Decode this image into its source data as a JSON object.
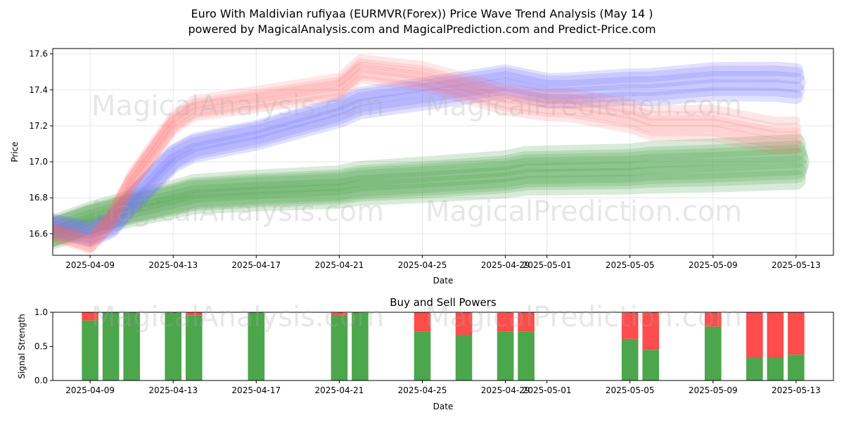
{
  "title_line1": "Euro With Maldivian rufiyaa (EURMVR(Forex)) Price Wave Trend Analysis (May 14 )",
  "title_line2": "powered by MagicalAnalysis.com and MagicalPrediction.com and Predict-Price.com",
  "watermarks": {
    "analysis": "MagicalAnalysis.com",
    "prediction": "MagicalPrediction.com"
  },
  "colors": {
    "red": "#ff6b6b",
    "blue": "#7777ff",
    "green": "#4ca64c",
    "buy": "#4ca64c",
    "sell": "#ff4c4c"
  },
  "chart_data": [
    {
      "type": "line",
      "title": "",
      "xlabel": "Date",
      "ylabel": "Price",
      "ylim": [
        16.48,
        17.63
      ],
      "xlim_days": [
        -1.8,
        35.8
      ],
      "x_origin": "2025-04-09",
      "grid": true,
      "yticks": [
        16.6,
        16.8,
        17.0,
        17.2,
        17.4,
        17.6
      ],
      "ytick_labels": [
        "16.6",
        "16.8",
        "17.0",
        "17.2",
        "17.4",
        "17.6"
      ],
      "xticks_days": [
        0,
        4,
        8,
        12,
        16,
        20,
        22,
        26,
        30,
        34
      ],
      "xtick_labels": [
        "2025-04-09",
        "2025-04-13",
        "2025-04-17",
        "2025-04-21",
        "2025-04-25",
        "2025-04-29",
        "2025-05-01",
        "2025-05-05",
        "2025-05-09",
        "2025-05-13"
      ],
      "series": [
        {
          "name": "red-wave",
          "color": "#ff6b6b",
          "x_days": [
            -2,
            0,
            1,
            2,
            4,
            5,
            8,
            12,
            13,
            16,
            20,
            22,
            23,
            26,
            27,
            30,
            33,
            34
          ],
          "y": [
            16.62,
            16.55,
            16.68,
            16.9,
            17.22,
            17.3,
            17.35,
            17.42,
            17.52,
            17.48,
            17.35,
            17.32,
            17.32,
            17.26,
            17.22,
            17.22,
            17.15,
            17.15
          ]
        },
        {
          "name": "blue-wave",
          "color": "#7777ff",
          "x_days": [
            -2,
            0,
            1,
            2,
            4,
            5,
            8,
            12,
            13,
            16,
            20,
            22,
            23,
            26,
            27,
            30,
            33,
            34
          ],
          "y": [
            16.65,
            16.6,
            16.65,
            16.78,
            17.02,
            17.08,
            17.15,
            17.28,
            17.33,
            17.38,
            17.45,
            17.4,
            17.4,
            17.42,
            17.42,
            17.45,
            17.45,
            17.44
          ]
        },
        {
          "name": "green-wave",
          "color": "#4ca64c",
          "x_days": [
            -2,
            0,
            2,
            4,
            5,
            8,
            12,
            13,
            16,
            20,
            21,
            26,
            27,
            30,
            34
          ],
          "y": [
            16.6,
            16.68,
            16.74,
            16.79,
            16.82,
            16.84,
            16.86,
            16.88,
            16.9,
            16.93,
            16.95,
            16.96,
            16.97,
            16.98,
            17.0
          ]
        }
      ]
    },
    {
      "type": "bar",
      "title": "Buy and Sell Powers",
      "xlabel": "Date",
      "ylabel": "Signal Strength",
      "ylim": [
        0,
        1.0
      ],
      "yticks": [
        0.0,
        0.5,
        1.0
      ],
      "ytick_labels": [
        "0.0",
        "0.5",
        "1.0"
      ],
      "x_days": [
        0,
        1,
        2,
        4,
        5,
        8,
        12,
        13,
        16,
        18,
        20,
        21,
        26,
        27,
        30,
        32,
        33,
        34
      ],
      "series": [
        {
          "name": "buy",
          "color": "#4ca64c",
          "values": [
            0.88,
            1.0,
            1.0,
            1.0,
            0.95,
            1.0,
            0.96,
            1.0,
            0.72,
            0.67,
            0.72,
            0.72,
            0.61,
            0.45,
            0.79,
            0.33,
            0.33,
            0.38
          ]
        },
        {
          "name": "sell",
          "color": "#ff4c4c",
          "values": [
            0.12,
            0.0,
            0.0,
            0.0,
            0.05,
            0.0,
            0.04,
            0.0,
            0.28,
            0.33,
            0.28,
            0.28,
            0.39,
            0.55,
            0.21,
            0.67,
            0.67,
            0.62
          ]
        }
      ]
    }
  ]
}
